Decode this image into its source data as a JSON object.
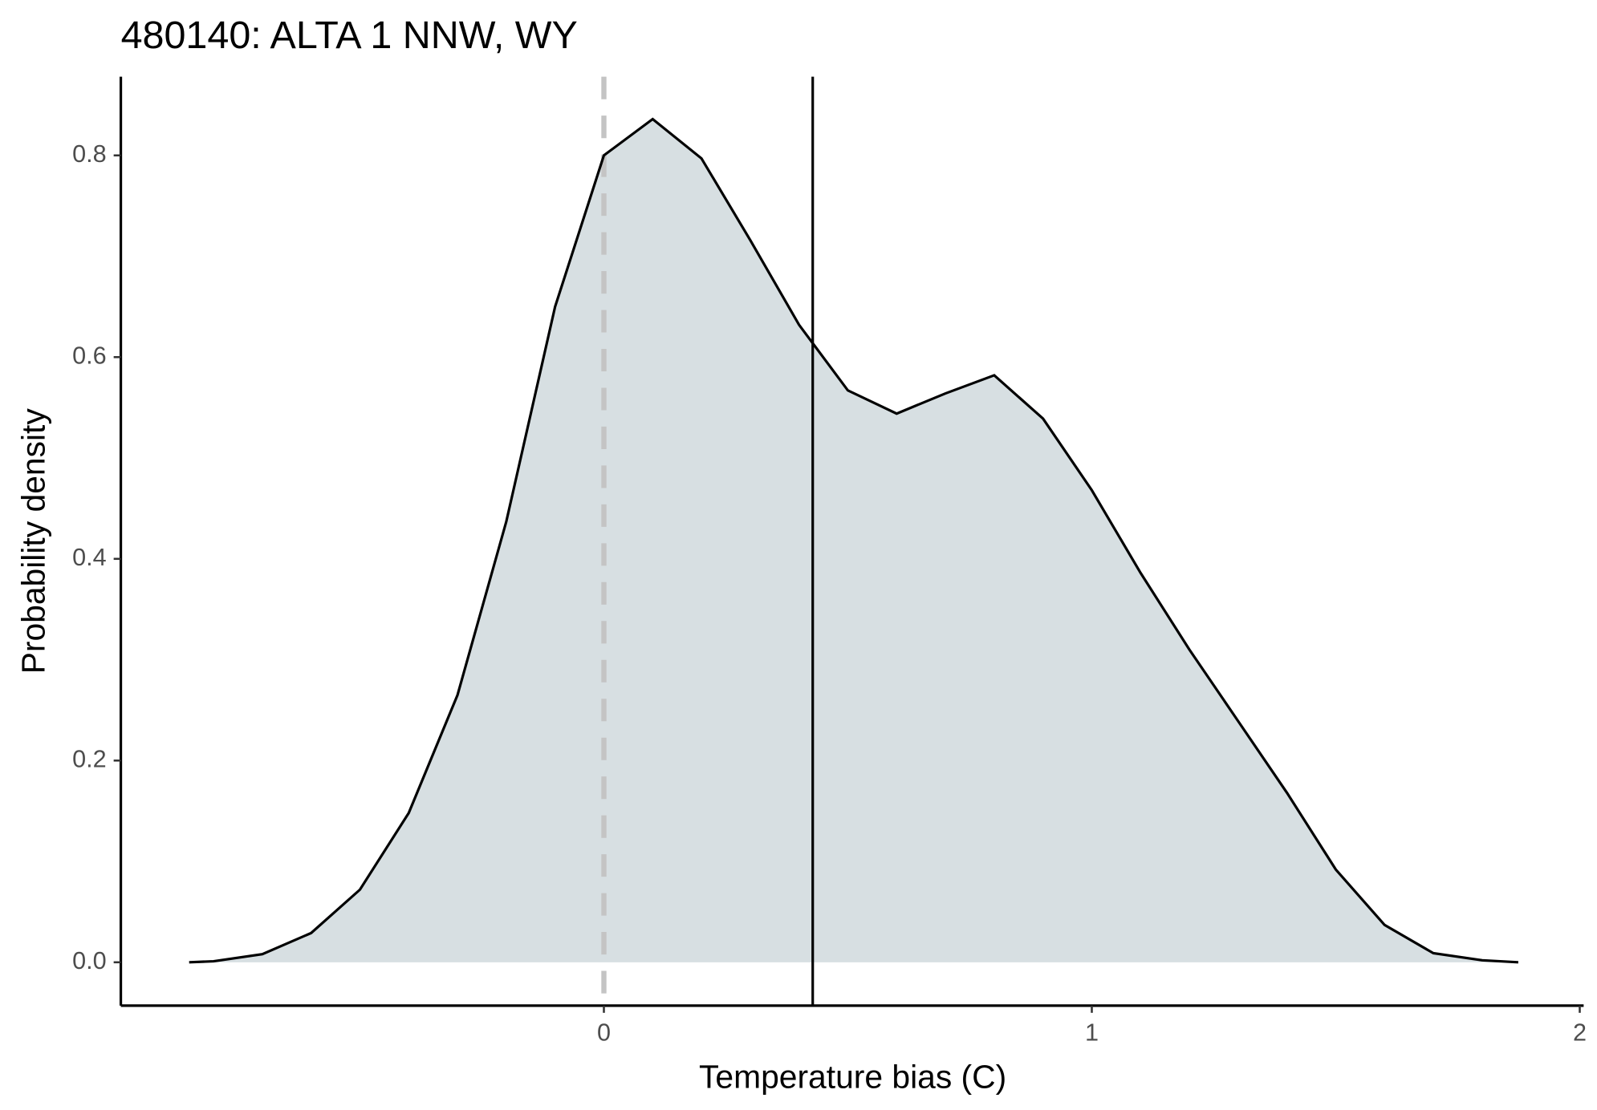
{
  "chart_data": {
    "type": "density",
    "title": "480140: ALTA 1 NNW, WY",
    "xlabel": "Temperature bias (C)",
    "ylabel": "Probability density",
    "x": [
      -0.85,
      -0.8,
      -0.7,
      -0.6,
      -0.5,
      -0.4,
      -0.3,
      -0.2,
      -0.1,
      0.0,
      0.1,
      0.2,
      0.3,
      0.4,
      0.5,
      0.6,
      0.7,
      0.8,
      0.9,
      1.0,
      1.1,
      1.2,
      1.3,
      1.4,
      1.5,
      1.6,
      1.7,
      1.8,
      1.874
    ],
    "values": [
      0.0,
      0.001,
      0.008,
      0.029,
      0.072,
      0.148,
      0.265,
      0.437,
      0.65,
      0.8,
      0.836,
      0.797,
      0.716,
      0.632,
      0.567,
      0.544,
      0.564,
      0.582,
      0.539,
      0.468,
      0.386,
      0.31,
      0.239,
      0.168,
      0.092,
      0.037,
      0.009,
      0.002,
      0.0
    ],
    "fill": "#d7dfe2",
    "color": "#000000",
    "vlines": [
      {
        "x": 0,
        "color": "#c4c4c4",
        "dashed": true
      },
      {
        "x": 0.428,
        "color": "#000000",
        "dashed": false
      }
    ],
    "xlim": [
      -0.99,
      2.008
    ],
    "ylim": [
      -0.043,
      0.878
    ],
    "xticks": [
      0,
      1,
      2
    ],
    "yticks": [
      {
        "value": 0,
        "label": "0.0"
      },
      0.2,
      0.4,
      0.6,
      0.8
    ]
  }
}
